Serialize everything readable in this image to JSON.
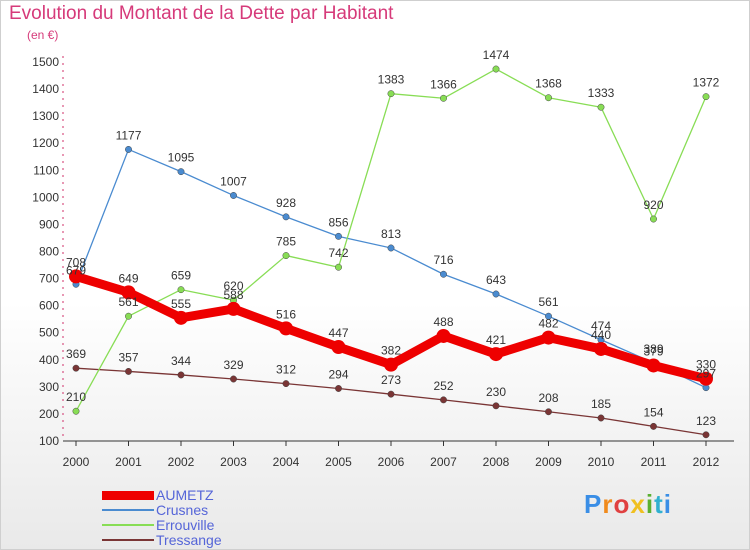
{
  "title": "Evolution du Montant de la Dette par Habitant",
  "subtitle": "(en €)",
  "brand": "Proxiti",
  "chart_data": {
    "type": "line",
    "title": "Evolution du Montant de la Dette par Habitant",
    "subtitle": "(en €)",
    "xlabel": "",
    "ylabel": "",
    "x": [
      "2000",
      "2001",
      "2002",
      "2003",
      "2004",
      "2005",
      "2006",
      "2007",
      "2008",
      "2009",
      "2010",
      "2011",
      "2012"
    ],
    "ylim": [
      100,
      1500
    ],
    "yticks": [
      100,
      200,
      300,
      400,
      500,
      600,
      700,
      800,
      900,
      1000,
      1100,
      1200,
      1300,
      1400,
      1500
    ],
    "grid": false,
    "legend_position": "bottom-left",
    "series": [
      {
        "name": "AUMETZ",
        "color": "#ee0000",
        "values": [
          708,
          649,
          555,
          588,
          516,
          447,
          382,
          488,
          421,
          482,
          440,
          379,
          330
        ]
      },
      {
        "name": "Crusnes",
        "color": "#4a8bd0",
        "values": [
          679,
          1177,
          1095,
          1007,
          928,
          856,
          813,
          716,
          643,
          561,
          474,
          389,
          297
        ]
      },
      {
        "name": "Errouville",
        "color": "#88dd55",
        "values": [
          210,
          561,
          659,
          620,
          785,
          742,
          1383,
          1366,
          1474,
          1368,
          1333,
          920,
          1372
        ]
      },
      {
        "name": "Tressange",
        "color": "#7a3535",
        "values": [
          369,
          357,
          344,
          329,
          312,
          294,
          273,
          252,
          230,
          208,
          185,
          154,
          123
        ]
      }
    ]
  }
}
